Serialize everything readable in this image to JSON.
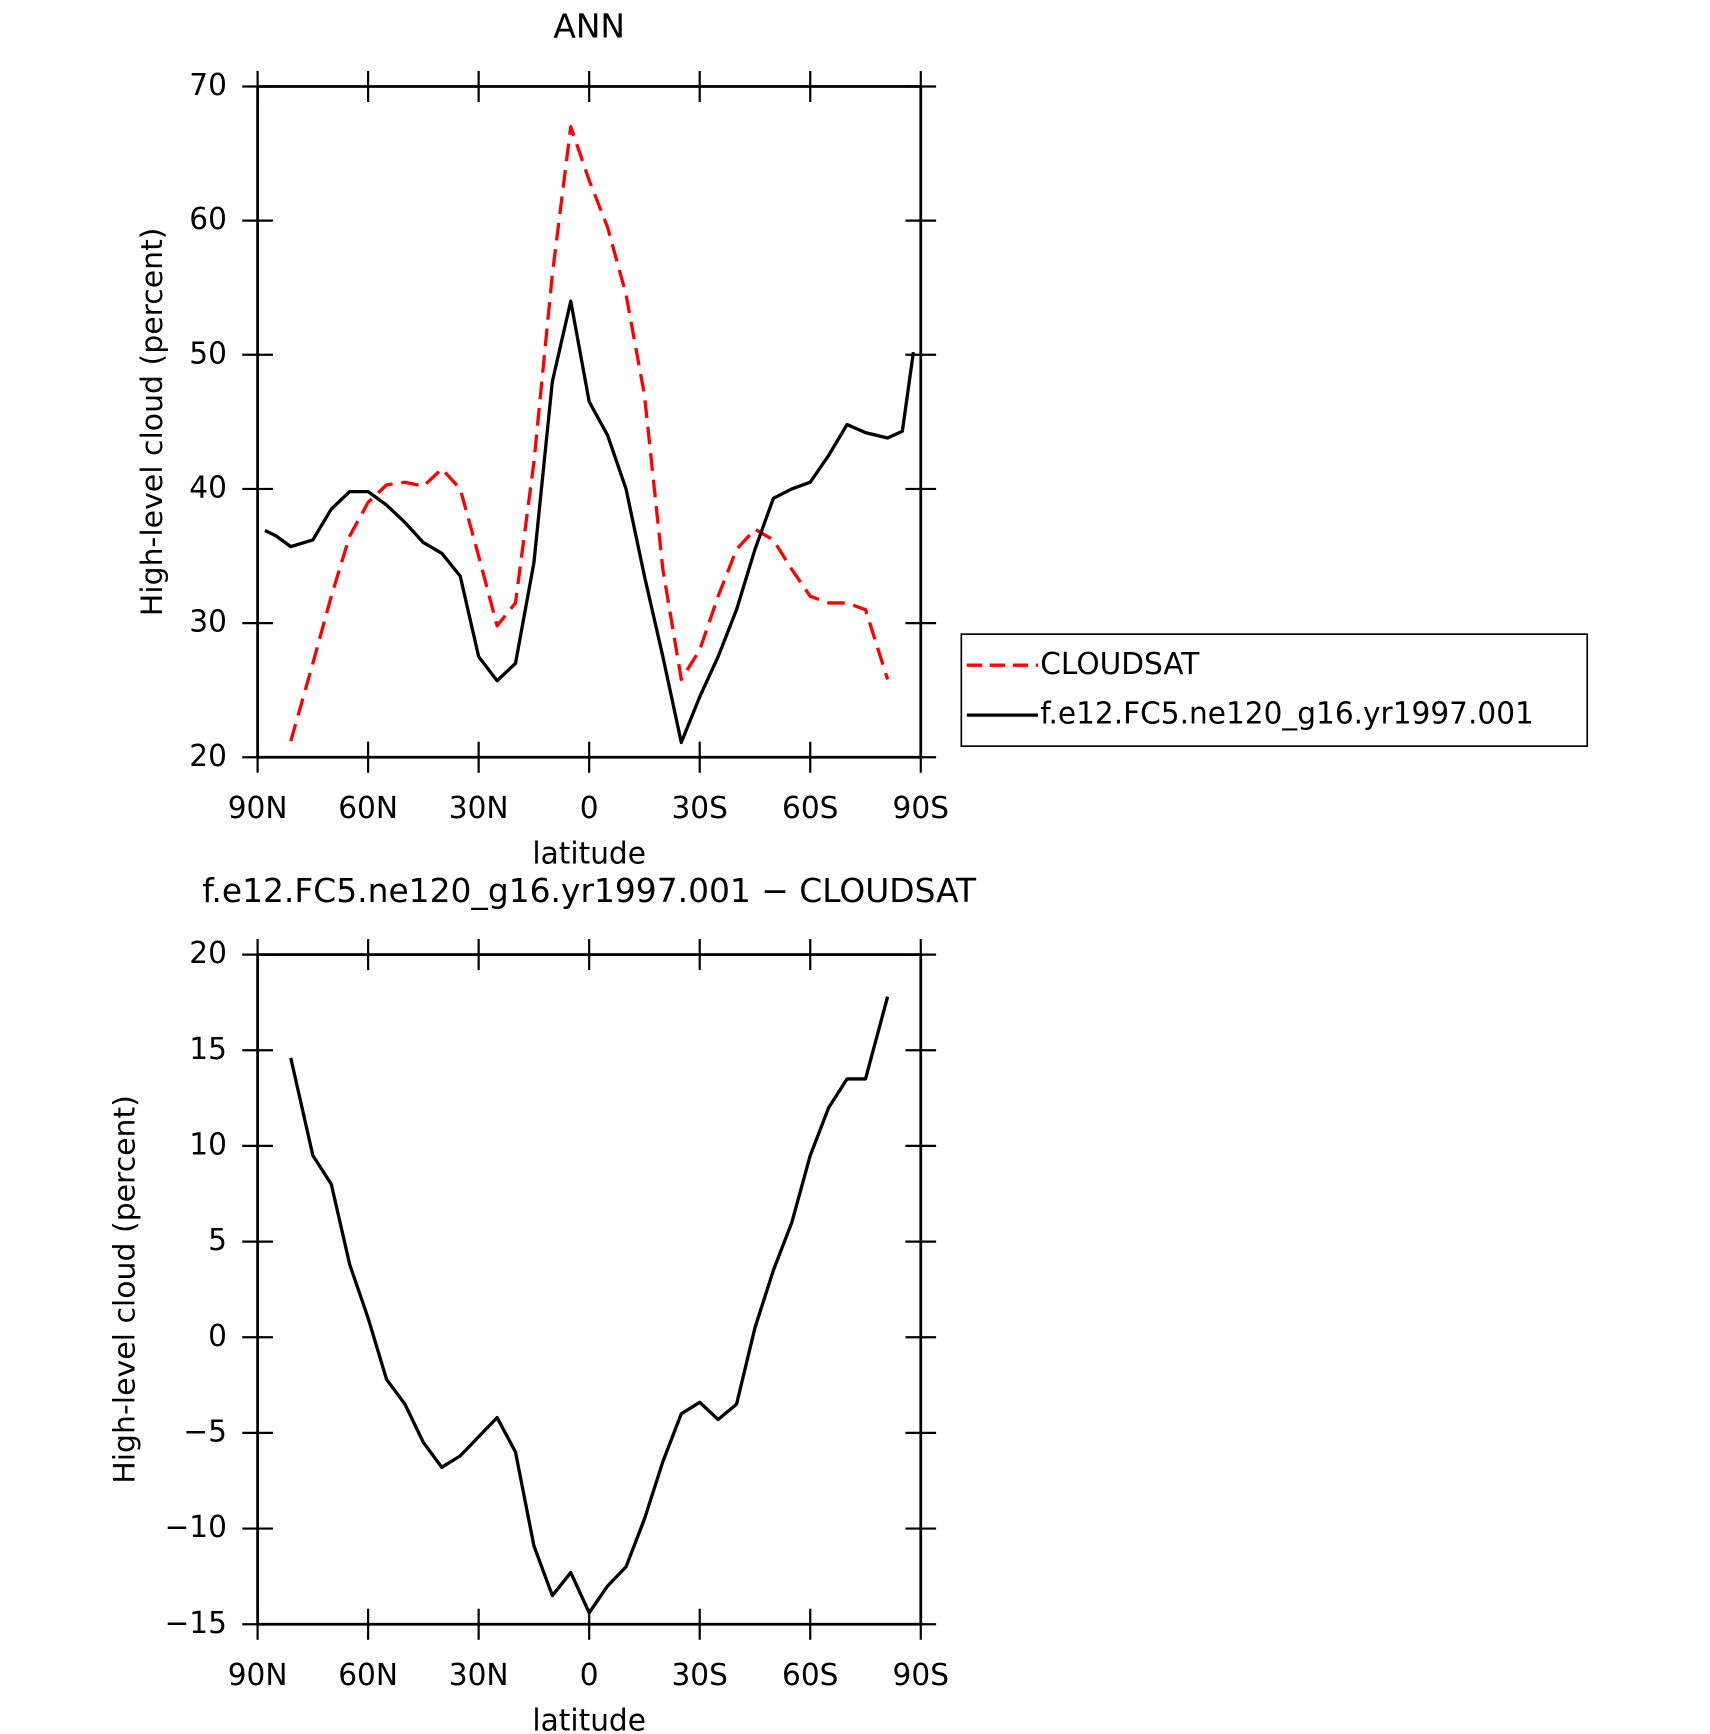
{
  "chart_data": [
    {
      "type": "line",
      "title": "ANN",
      "xlabel": "latitude",
      "ylabel": "High-level cloud (percent)",
      "x": [
        88,
        85,
        81,
        75,
        70,
        65,
        60,
        55,
        50,
        45,
        40,
        35,
        30,
        25,
        20,
        15,
        10,
        5,
        0,
        -5,
        -10,
        -15,
        -20,
        -25,
        -30,
        -35,
        -40,
        -45,
        -50,
        -55,
        -60,
        -65,
        -70,
        -75,
        -81,
        -85,
        -88
      ],
      "xlim": [
        90,
        -90
      ],
      "xticks": [
        {
          "value": 90,
          "label": "90N"
        },
        {
          "value": 60,
          "label": "60N"
        },
        {
          "value": 30,
          "label": "30N"
        },
        0,
        {
          "value": -30,
          "label": "30S"
        },
        {
          "value": -60,
          "label": "60S"
        },
        {
          "value": -90,
          "label": "90S"
        }
      ],
      "ylim": [
        20,
        70
      ],
      "yticks": [
        20,
        30,
        40,
        50,
        60,
        70
      ],
      "legend": "right",
      "series": [
        {
          "name": "CLOUDSAT",
          "color": "#ff0000",
          "line_style": "dashed",
          "values": [
            null,
            null,
            21.2,
            27,
            32,
            36.5,
            39,
            40.3,
            40.5,
            40.2,
            41.5,
            40,
            35,
            29.8,
            31.5,
            42,
            56,
            67,
            63,
            59.5,
            54.5,
            47,
            34,
            25.8,
            28,
            32,
            35.5,
            37,
            36.2,
            34,
            32,
            31.5,
            31.5,
            31,
            25.8,
            null,
            null
          ]
        },
        {
          "name": "f.e12.FC5.ne120_g16.yr1997.001",
          "color": "#000000",
          "line_style": "solid",
          "values": [
            36.9,
            36.5,
            35.7,
            36.2,
            38.5,
            39.8,
            39.8,
            38.8,
            37.5,
            36,
            35.2,
            33.5,
            27.5,
            25.7,
            27,
            34.5,
            48,
            54,
            46.5,
            44,
            40,
            33.5,
            27.5,
            21.1,
            24.5,
            27.5,
            31,
            35.5,
            39.3,
            40,
            40.5,
            42.5,
            44.8,
            44.2,
            43.8,
            44.3,
            50.2
          ]
        }
      ]
    },
    {
      "type": "line",
      "title": "f.e12.FC5.ne120_g16.yr1997.001 − CLOUDSAT",
      "xlabel": "latitude",
      "ylabel": "High-level cloud (percent)",
      "x": [
        81,
        75,
        70,
        65,
        60,
        55,
        50,
        45,
        40,
        35,
        30,
        25,
        20,
        15,
        10,
        5,
        0,
        -5,
        -10,
        -15,
        -20,
        -25,
        -30,
        -35,
        -40,
        -45,
        -50,
        -55,
        -60,
        -65,
        -70,
        -75,
        -81
      ],
      "xlim": [
        90,
        -90
      ],
      "xticks": [
        {
          "value": 90,
          "label": "90N"
        },
        {
          "value": 60,
          "label": "60N"
        },
        {
          "value": 30,
          "label": "30N"
        },
        0,
        {
          "value": -30,
          "label": "30S"
        },
        {
          "value": -60,
          "label": "60S"
        },
        {
          "value": -90,
          "label": "90S"
        }
      ],
      "ylim": [
        -15,
        20
      ],
      "yticks": [
        {
          "value": -15,
          "label": "−15"
        },
        {
          "value": -10,
          "label": "−10"
        },
        {
          "value": -5,
          "label": "−5"
        },
        0,
        5,
        10,
        15,
        20
      ],
      "series": [
        {
          "color": "#000000",
          "line_style": "solid",
          "values": [
            14.6,
            9.5,
            8,
            3.8,
            1,
            -2.2,
            -3.5,
            -5.5,
            -6.8,
            -6.2,
            -5.2,
            -4.2,
            -6,
            -10.9,
            -13.5,
            -12.3,
            -14.4,
            -13,
            -12,
            -9.5,
            -6.5,
            -4,
            -3.4,
            -4.3,
            -3.5,
            0.5,
            3.5,
            6,
            9.5,
            12,
            13.5,
            13.5,
            17.8
          ]
        }
      ]
    }
  ]
}
